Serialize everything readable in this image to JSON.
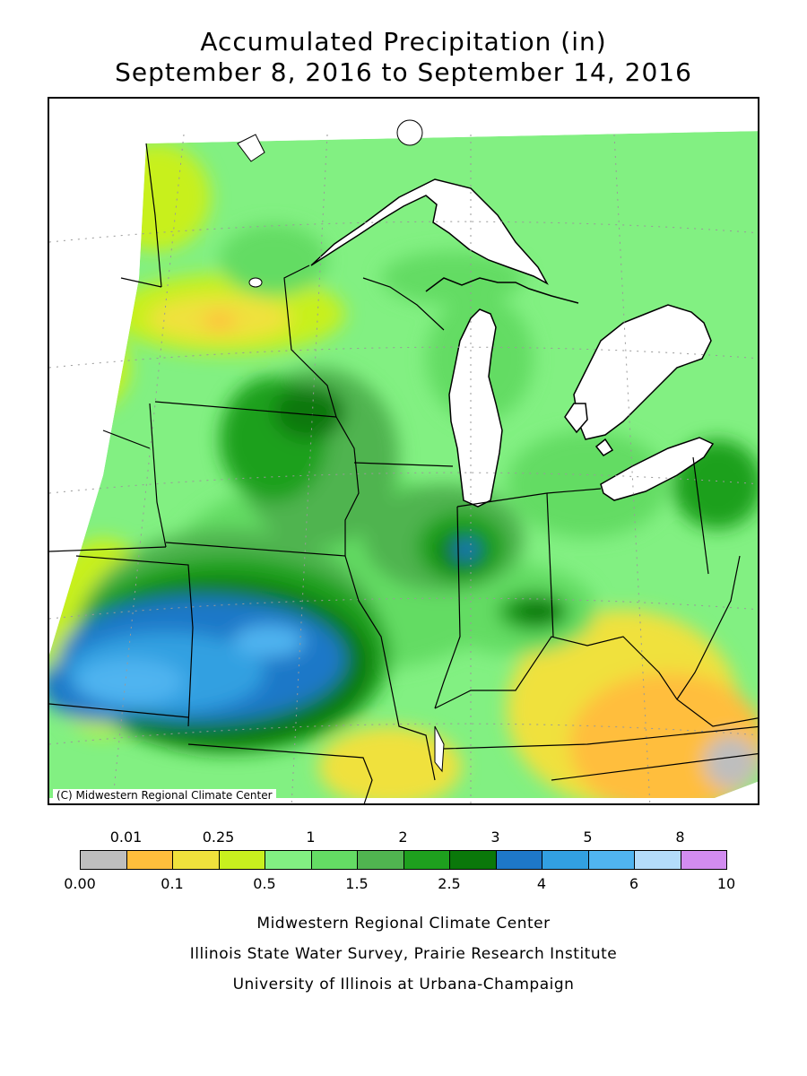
{
  "title": {
    "line1": "Accumulated Precipitation (in)",
    "line2": "September 8, 2016 to September 14, 2016"
  },
  "map": {
    "copyright": "(C) Midwestern Regional Climate Center"
  },
  "legend": {
    "upper_labels": [
      "0.01",
      "0.25",
      "1",
      "2",
      "3",
      "5",
      "8"
    ],
    "lower_labels": [
      "0.00",
      "0.1",
      "0.5",
      "1.5",
      "2.5",
      "4",
      "6",
      "10"
    ],
    "colors": [
      "#bebebe",
      "#ffbe3c",
      "#f0e13c",
      "#c8f01e",
      "#82f082",
      "#64dc64",
      "#50b450",
      "#1ea01e",
      "#0a780a",
      "#1e78c8",
      "#32a0e1",
      "#50b4f0",
      "#b4dcfa",
      "#d28cf0"
    ]
  },
  "footer": {
    "line1": "Midwestern Regional Climate Center",
    "line2": "Illinois State Water Survey, Prairie Research Institute",
    "line3": "University of Illinois at Urbana-Champaign"
  }
}
